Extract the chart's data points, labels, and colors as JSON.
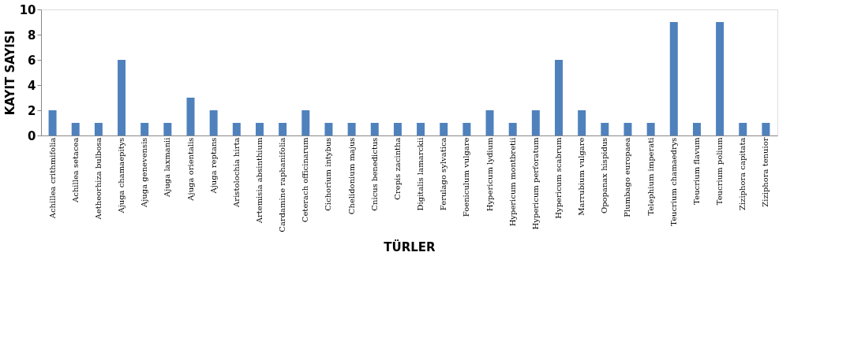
{
  "chart_data": {
    "type": "bar",
    "xlabel": "TÜRLER",
    "ylabel": "KAYIT SAYISI",
    "categories": [
      "Achillea crithmifolia",
      "Achillea setacea",
      "Aetheorhiza bulbosa",
      "Ajuga chamaepitys",
      "Ajuga genevensis",
      "Ajuga laxmanii",
      "Ajuga orientalis",
      "Ajuga reptans",
      "Aristolochia hirta",
      "Artemisia absinthium",
      "Cardamine raphanifolia",
      "Ceterach officinarum",
      "Cichorium intybus",
      "Chelidonium majus",
      "Cnicus benedictus",
      "Crepis zacintha",
      "Digitalis lamarckii",
      "Ferulago sylvatica",
      "Foeniculum vulgare",
      "Hypericum lydium",
      "Hypericum montbretii",
      "Hypericum perforatum",
      "Hypericum scabrum",
      "Marrubium vulgare",
      "Opopanax hispidus",
      "Plumbago europaea",
      "Telephium imperati",
      "Teucrium chamaedrys",
      "Teucrium flavum",
      "Teucrium polium",
      "Ziziphora capitata",
      "Ziziphora tenuior"
    ],
    "values": [
      2,
      1,
      1,
      6,
      1,
      1,
      3,
      2,
      1,
      1,
      1,
      2,
      1,
      1,
      1,
      1,
      1,
      1,
      1,
      2,
      1,
      2,
      6,
      2,
      1,
      1,
      1,
      9,
      1,
      9,
      1,
      1
    ],
    "color": "#4f81bd",
    "ylim": [
      0,
      10
    ],
    "yticks": [
      0,
      2,
      4,
      6,
      8,
      10
    ],
    "grid": false
  }
}
